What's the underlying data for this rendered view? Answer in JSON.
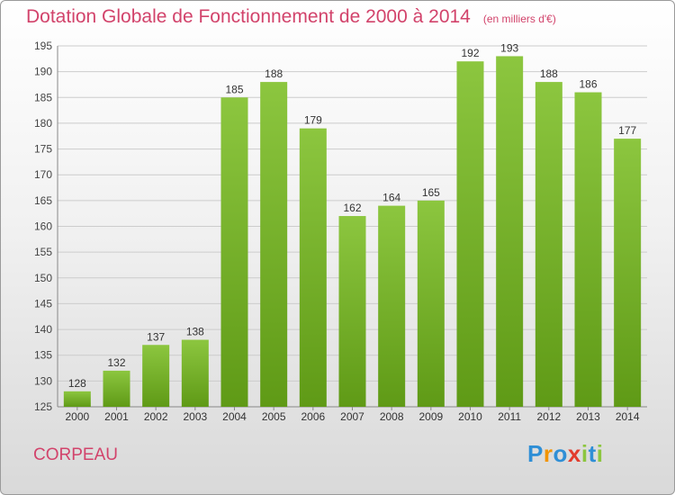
{
  "chart_data": {
    "type": "bar",
    "title": "Dotation Globale de Fonctionnement de 2000 à 2014",
    "subtitle": "(en milliers d'€)",
    "categories": [
      "2000",
      "2001",
      "2002",
      "2003",
      "2004",
      "2005",
      "2006",
      "2007",
      "2008",
      "2009",
      "2010",
      "2011",
      "2012",
      "2013",
      "2014"
    ],
    "values": [
      128,
      132,
      137,
      138,
      185,
      188,
      179,
      162,
      164,
      165,
      192,
      193,
      188,
      186,
      177
    ],
    "ylim": [
      125,
      195
    ],
    "yticks": [
      125,
      130,
      135,
      140,
      145,
      150,
      155,
      160,
      165,
      170,
      175,
      180,
      185,
      190,
      195
    ],
    "grid": true,
    "bar_color": "#8cc63f",
    "bar_color_dark": "#5f9a16",
    "grid_color": "#cccccc",
    "title_color": "#d2436b"
  },
  "commune": "CORPEAU",
  "logo": {
    "letters": [
      "P",
      "r",
      "o",
      "x",
      "i",
      "t",
      "i"
    ],
    "colors": [
      "#2f8fd6",
      "#f29400",
      "#2f8fd6",
      "#e23c2d",
      "#8cc63f",
      "#2f8fd6",
      "#8cc63f"
    ]
  }
}
